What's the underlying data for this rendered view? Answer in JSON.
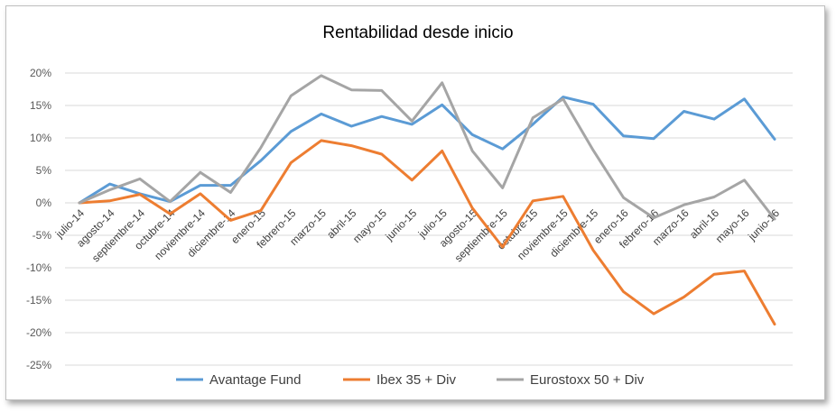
{
  "chart_data": {
    "type": "line",
    "title": "Rentabilidad desde inicio",
    "xlabel": "",
    "ylabel": "",
    "ylim": [
      -0.25,
      0.2
    ],
    "yticks": [
      {
        "v": 0.2,
        "label": "20%"
      },
      {
        "v": 0.15,
        "label": "15%"
      },
      {
        "v": 0.1,
        "label": "10%"
      },
      {
        "v": 0.05,
        "label": "5%"
      },
      {
        "v": 0.0,
        "label": "0%"
      },
      {
        "v": -0.05,
        "label": "-5%"
      },
      {
        "v": -0.1,
        "label": "-10%"
      },
      {
        "v": -0.15,
        "label": "-15%"
      },
      {
        "v": -0.2,
        "label": "-20%"
      },
      {
        "v": -0.25,
        "label": "-25%"
      }
    ],
    "categories": [
      "julio-14",
      "agosto-14",
      "septiembre-14",
      "octubre-14",
      "noviembre-14",
      "diciembre-14",
      "enero-15",
      "febrero-15",
      "marzo-15",
      "abril-15",
      "mayo-15",
      "junio-15",
      "julio-15",
      "agosto-15",
      "septiembre-15",
      "octubre-15",
      "noviembre-15",
      "diciembre-15",
      "enero-16",
      "febrero-16",
      "marzo-16",
      "abril-16",
      "mayo-16",
      "junio-16"
    ],
    "grid": true,
    "legend_position": "bottom",
    "series": [
      {
        "name": "Avantage Fund",
        "color": "#5b9bd5",
        "values": [
          0.0,
          0.029,
          0.014,
          0.002,
          0.027,
          0.027,
          0.065,
          0.11,
          0.137,
          0.118,
          0.133,
          0.121,
          0.151,
          0.105,
          0.083,
          0.121,
          0.163,
          0.152,
          0.103,
          0.099,
          0.141,
          0.129,
          0.16,
          0.098
        ]
      },
      {
        "name": "Ibex 35 + Div",
        "color": "#ed7d31",
        "values": [
          0.0,
          0.003,
          0.013,
          -0.017,
          0.014,
          -0.027,
          -0.012,
          0.062,
          0.096,
          0.088,
          0.075,
          0.035,
          0.08,
          -0.008,
          -0.068,
          0.003,
          0.01,
          -0.073,
          -0.137,
          -0.171,
          -0.145,
          -0.11,
          -0.105,
          -0.187
        ]
      },
      {
        "name": "Eurostoxx 50 + Div",
        "color": "#a5a5a5",
        "values": [
          0.0,
          0.02,
          0.037,
          0.002,
          0.047,
          0.016,
          0.085,
          0.165,
          0.196,
          0.174,
          0.173,
          0.126,
          0.185,
          0.08,
          0.023,
          0.131,
          0.16,
          0.081,
          0.008,
          -0.023,
          -0.003,
          0.009,
          0.035,
          -0.025
        ]
      }
    ]
  }
}
